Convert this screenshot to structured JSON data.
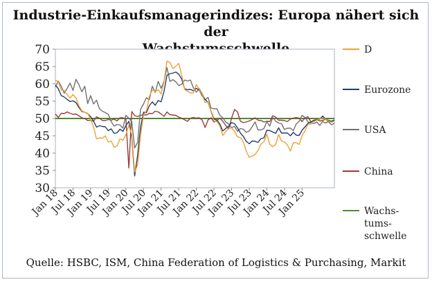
{
  "title_line1": "Industrie-Einkaufsmanagerindizes: Europa nähert sich der",
  "title_line2": "Wachstumsschwelle",
  "source": "Quelle: HSBC, ISM, China Federation of Logistics & Purchasing, Markit",
  "chart_data": {
    "type": "line",
    "ylim": [
      30,
      70
    ],
    "yticks": [
      30,
      35,
      40,
      45,
      50,
      55,
      60,
      65,
      70
    ],
    "x_start": "2018-01",
    "months": 96,
    "xticks": [
      "Jan 18",
      "Jul 18",
      "Jan 19",
      "Jul 19",
      "Jan 20",
      "Jul 20",
      "Jan 21",
      "Jul 21",
      "Jan 22",
      "Jul 22",
      "Jan 23",
      "Jul 23",
      "Jan 24",
      "Jul 24",
      "Jan 25"
    ],
    "legend_position": "right",
    "series": [
      {
        "name": "D",
        "color": "#f0a030",
        "values": [
          61.1,
          60.6,
          58.2,
          58.1,
          56.9,
          55.9,
          56.9,
          55.9,
          53.7,
          52.2,
          51.8,
          51.5,
          49.7,
          47.6,
          44.1,
          44.4,
          44.3,
          45.0,
          43.2,
          43.5,
          41.7,
          42.1,
          44.1,
          43.7,
          45.3,
          48.0,
          45.4,
          34.5,
          36.6,
          45.2,
          51.0,
          52.2,
          56.4,
          58.2,
          57.8,
          58.3,
          57.1,
          60.7,
          66.6,
          66.2,
          64.4,
          65.1,
          65.9,
          62.6,
          58.4,
          57.8,
          57.4,
          57.4,
          59.8,
          58.4,
          56.9,
          54.6,
          54.8,
          52.0,
          49.3,
          49.1,
          47.8,
          45.1,
          46.2,
          47.1,
          47.3,
          46.3,
          44.7,
          44.5,
          43.2,
          40.6,
          38.8,
          39.1,
          39.6,
          40.8,
          42.6,
          43.3,
          45.5,
          42.5,
          41.9,
          42.5,
          45.4,
          43.5,
          43.2,
          42.4,
          40.6,
          43.0,
          43.0,
          42.5,
          45.0,
          46.5,
          48.3,
          48.4,
          49.1,
          49.5,
          49.9,
          50.2,
          49.8,
          49.3,
          48.9,
          49.2
        ]
      },
      {
        "name": "Eurozone",
        "color": "#1f3e6e",
        "values": [
          59.6,
          58.6,
          56.6,
          56.2,
          55.5,
          54.9,
          55.1,
          54.6,
          53.2,
          52.0,
          51.8,
          51.4,
          50.5,
          49.3,
          47.5,
          47.9,
          47.7,
          47.6,
          46.5,
          47.0,
          45.7,
          45.9,
          46.9,
          46.3,
          47.9,
          49.2,
          44.5,
          33.4,
          39.4,
          47.4,
          51.8,
          51.7,
          53.7,
          54.8,
          53.8,
          55.2,
          54.8,
          57.9,
          62.5,
          62.9,
          63.1,
          63.4,
          62.8,
          61.4,
          58.6,
          58.3,
          58.4,
          58.0,
          58.7,
          58.2,
          56.5,
          55.5,
          54.6,
          52.1,
          49.8,
          49.6,
          48.4,
          46.4,
          47.1,
          47.8,
          48.8,
          48.5,
          47.3,
          45.8,
          44.8,
          43.4,
          42.7,
          43.5,
          43.4,
          43.1,
          44.2,
          44.4,
          46.6,
          46.5,
          46.1,
          45.7,
          47.3,
          45.8,
          45.8,
          45.8,
          45.0,
          46.0,
          45.2,
          45.1,
          46.6,
          47.6,
          48.6,
          49.0,
          49.4,
          49.5,
          49.8,
          50.7,
          49.8,
          49.5,
          49.2,
          49.6
        ]
      },
      {
        "name": "USA",
        "color": "#707070",
        "values": [
          59.1,
          60.8,
          59.3,
          57.3,
          58.7,
          60.2,
          58.1,
          61.3,
          59.8,
          57.7,
          59.3,
          54.3,
          56.6,
          54.2,
          55.3,
          52.8,
          52.1,
          51.7,
          51.2,
          49.1,
          47.8,
          48.3,
          48.1,
          47.2,
          50.9,
          50.1,
          49.1,
          41.5,
          43.1,
          52.6,
          54.2,
          56.0,
          55.4,
          59.3,
          57.5,
          60.7,
          58.7,
          60.8,
          64.7,
          60.7,
          61.2,
          60.6,
          59.5,
          59.9,
          61.1,
          60.8,
          61.1,
          58.8,
          57.6,
          58.6,
          57.1,
          55.4,
          56.1,
          53.0,
          52.8,
          52.8,
          50.9,
          50.2,
          49.0,
          48.4,
          47.4,
          47.7,
          46.3,
          47.1,
          46.9,
          46.0,
          46.4,
          47.6,
          49.0,
          46.7,
          46.7,
          47.1,
          49.1,
          47.8,
          50.3,
          49.2,
          48.7,
          48.5,
          46.8,
          47.2,
          47.2,
          46.5,
          48.4,
          49.2,
          50.9,
          50.3,
          49.0,
          48.7,
          48.5,
          49.0,
          48.0,
          49.1,
          48.7,
          49.1,
          48.2,
          48.6
        ]
      },
      {
        "name": "China",
        "color": "#9b3a3a",
        "values": [
          51.3,
          50.3,
          51.5,
          51.4,
          51.9,
          51.5,
          51.2,
          51.3,
          50.8,
          50.2,
          50.0,
          49.4,
          49.5,
          49.2,
          50.5,
          50.1,
          49.4,
          49.4,
          49.7,
          49.5,
          49.8,
          49.3,
          50.2,
          50.2,
          50.0,
          35.7,
          52.0,
          50.8,
          50.6,
          50.9,
          51.1,
          51.0,
          51.5,
          51.4,
          52.1,
          51.9,
          51.3,
          50.6,
          51.9,
          51.1,
          51.0,
          50.9,
          50.4,
          50.1,
          49.6,
          49.2,
          50.1,
          50.3,
          50.1,
          50.2,
          49.5,
          47.4,
          49.6,
          50.2,
          49.0,
          49.4,
          50.1,
          49.2,
          48.0,
          47.0,
          50.1,
          52.6,
          51.9,
          49.2,
          48.8,
          49.0,
          49.3,
          49.7,
          50.2,
          49.5,
          49.4,
          49.0,
          49.2,
          49.1,
          50.8,
          50.4,
          49.5,
          49.5,
          49.4,
          49.1,
          49.8,
          50.1,
          50.3,
          50.1,
          49.1,
          50.2,
          50.5,
          49.0,
          49.5,
          49.7,
          49.3,
          49.4,
          49.8,
          49.0,
          49.2,
          49.5
        ]
      },
      {
        "name": "Wachs-tums-schwelle",
        "color": "#4e8a2e",
        "values": [
          50,
          50
        ]
      }
    ],
    "legend_labels": [
      {
        "key": "D",
        "lines": [
          "D"
        ]
      },
      {
        "key": "Eurozone",
        "lines": [
          "Eurozone"
        ]
      },
      {
        "key": "USA",
        "lines": [
          "USA"
        ]
      },
      {
        "key": "China",
        "lines": [
          "China"
        ]
      },
      {
        "key": "Wachs-tums-schwelle",
        "lines": [
          "Wachs-",
          "tums-",
          "schwelle"
        ]
      }
    ]
  }
}
